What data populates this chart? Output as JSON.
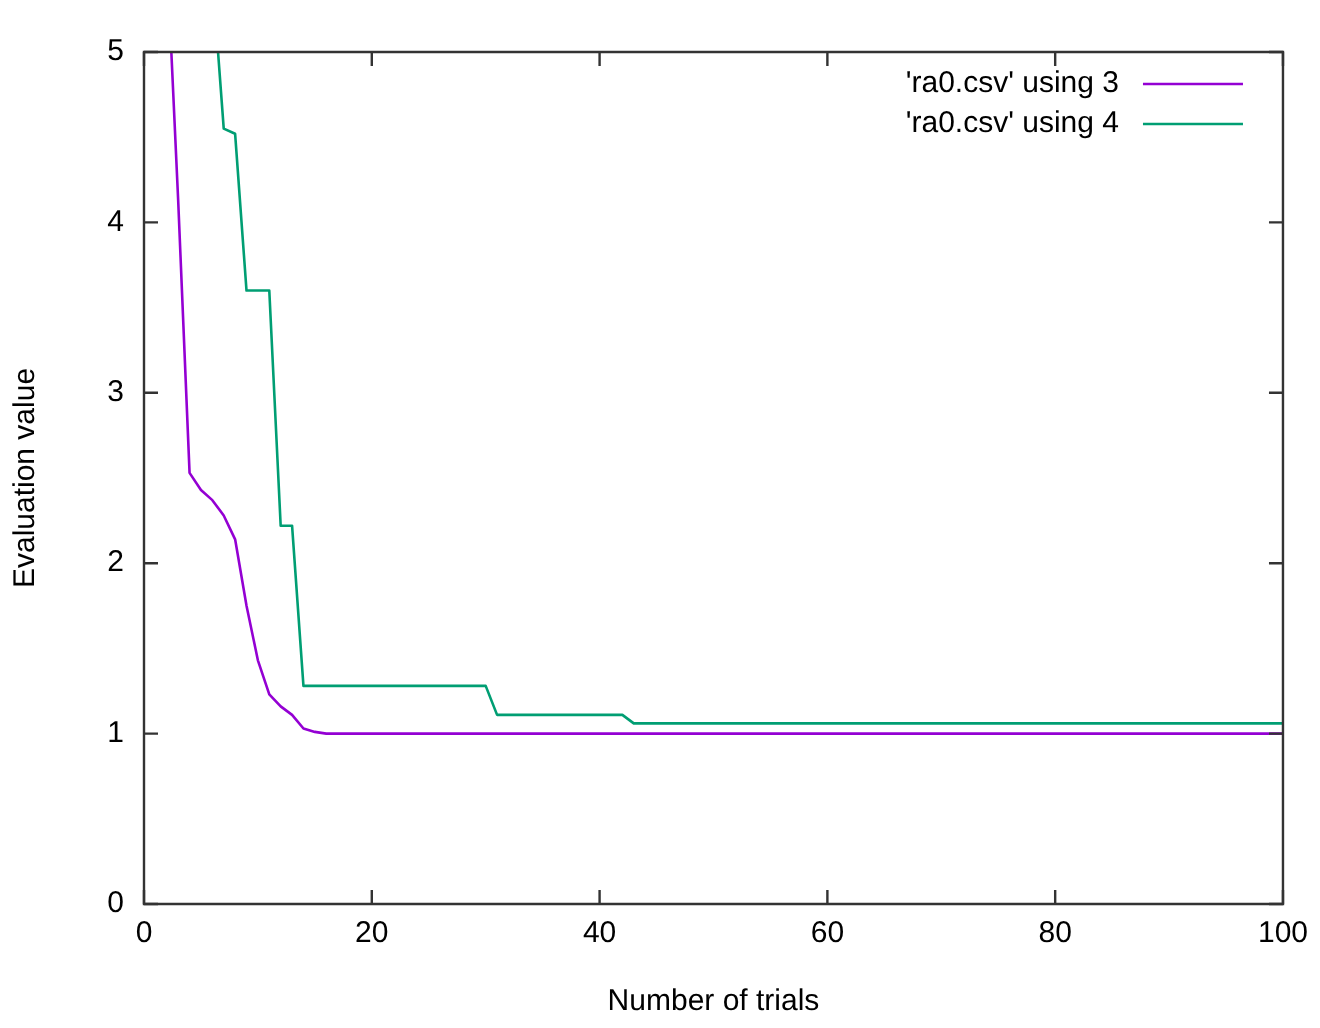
{
  "chart_data": {
    "type": "line",
    "xlabel": "Number of trials",
    "ylabel": "Evaluation value",
    "xlim": [
      0,
      100
    ],
    "xticks": [
      0,
      20,
      40,
      60,
      80,
      100
    ],
    "ylim": [
      0,
      5
    ],
    "yticks": [
      0,
      1,
      2,
      3,
      4,
      5
    ],
    "grid": false,
    "legend": "top right",
    "marker": "none",
    "line_style": "solid",
    "series": [
      {
        "name": "'ra0.csv' using 3",
        "color": "#9400d3",
        "x": [
          2.4,
          3,
          4,
          5,
          6,
          7,
          8,
          9,
          10,
          11,
          12,
          13,
          14,
          15,
          16,
          100
        ],
        "values": [
          5,
          4.13,
          2.53,
          2.43,
          2.37,
          2.28,
          2.14,
          1.75,
          1.43,
          1.23,
          1.16,
          1.11,
          1.03,
          1.01,
          1.0,
          1.0
        ]
      },
      {
        "name": "'ra0.csv' using 4",
        "color": "#009e73",
        "x": [
          6.5,
          7,
          8,
          9,
          11,
          12,
          13,
          14,
          30,
          31,
          42,
          43,
          100
        ],
        "values": [
          5,
          4.55,
          4.52,
          3.6,
          3.6,
          2.22,
          2.22,
          1.28,
          1.28,
          1.11,
          1.11,
          1.06,
          1.06
        ]
      }
    ]
  }
}
